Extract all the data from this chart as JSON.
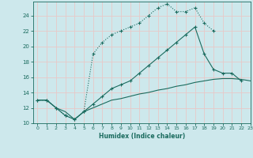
{
  "xlabel": "Humidex (Indice chaleur)",
  "bg_color": "#cde8ec",
  "grid_color": "#e8c8c8",
  "line_color": "#1a6b5e",
  "xlim": [
    -0.5,
    23
  ],
  "ylim": [
    10,
    25.8
  ],
  "xticks": [
    0,
    1,
    2,
    3,
    4,
    5,
    6,
    7,
    8,
    9,
    10,
    11,
    12,
    13,
    14,
    15,
    16,
    17,
    18,
    19,
    20,
    21,
    22,
    23
  ],
  "yticks": [
    10,
    12,
    14,
    16,
    18,
    20,
    22,
    24
  ],
  "line1_x": [
    0,
    1,
    2,
    3,
    4,
    5,
    6,
    7,
    8,
    9,
    10,
    11,
    12,
    13,
    14,
    15,
    16,
    17,
    18,
    19
  ],
  "line1_y": [
    13,
    13,
    12,
    11,
    10.5,
    11.5,
    19,
    20.5,
    21.5,
    22,
    22.5,
    23,
    24,
    25,
    25.5,
    24.5,
    24.5,
    25,
    23,
    22
  ],
  "line2_x": [
    0,
    1,
    2,
    3,
    4,
    5,
    6,
    7,
    8,
    9,
    10,
    11,
    12,
    13,
    14,
    15,
    16,
    17,
    18,
    19,
    20,
    21,
    22
  ],
  "line2_y": [
    13,
    13,
    12,
    11,
    10.5,
    11.5,
    12.5,
    13.5,
    14.5,
    15,
    15.5,
    16.5,
    17.5,
    18.5,
    19.5,
    20.5,
    21.5,
    22.5,
    19,
    17,
    16.5,
    16.5,
    15.5
  ],
  "line3_x": [
    0,
    1,
    2,
    3,
    4,
    5,
    6,
    7,
    8,
    9,
    10,
    11,
    12,
    13,
    14,
    15,
    16,
    17,
    18,
    19,
    20,
    21,
    22,
    23
  ],
  "line3_y": [
    13,
    13,
    12,
    11.5,
    10.5,
    11.5,
    12,
    12.5,
    13,
    13.2,
    13.5,
    13.8,
    14.0,
    14.3,
    14.5,
    14.8,
    15.0,
    15.3,
    15.5,
    15.7,
    15.8,
    15.8,
    15.7,
    15.5
  ]
}
